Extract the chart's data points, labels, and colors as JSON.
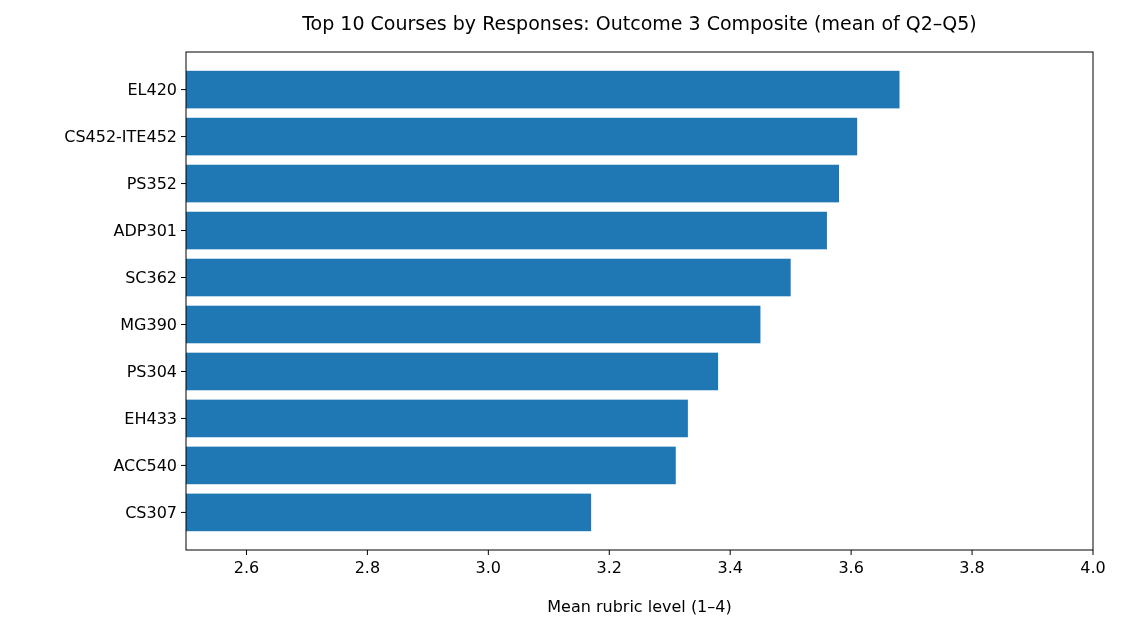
{
  "chart_data": {
    "type": "bar",
    "orientation": "horizontal",
    "title": "Top 10 Courses by Responses: Outcome 3 Composite (mean of Q2–Q5)",
    "xlabel": "Mean rubric level (1–4)",
    "categories": [
      "EL420",
      "CS452-ITE452",
      "PS352",
      "ADP301",
      "SC362",
      "MG390",
      "PS304",
      "EH433",
      "ACC540",
      "CS307"
    ],
    "values": [
      3.68,
      3.61,
      3.58,
      3.56,
      3.5,
      3.45,
      3.38,
      3.33,
      3.31,
      3.17
    ],
    "color": "#1f77b4",
    "xlim": [
      2.5,
      4.0
    ],
    "xticks": [
      2.6,
      2.8,
      {
        "value": 3.0,
        "label": "3.0"
      },
      3.2,
      3.4,
      3.6,
      3.8,
      {
        "value": 4.0,
        "label": "4.0"
      }
    ],
    "grid": false
  }
}
